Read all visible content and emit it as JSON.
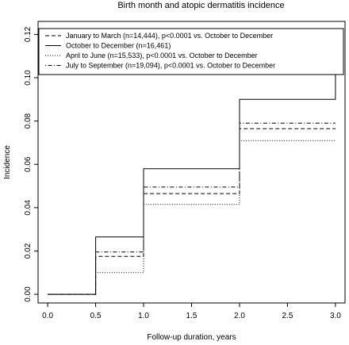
{
  "chart_data": {
    "type": "line",
    "title": "Birth month and atopic dermatitis incidence",
    "xlabel": "Follow-up duration, years",
    "ylabel": "Incidence",
    "xlim": [
      -0.1,
      3.1
    ],
    "ylim": [
      -0.004,
      0.126
    ],
    "x_ticks": [
      "0.0",
      "0.5",
      "1.0",
      "1.5",
      "2.0",
      "2.5",
      "3.0"
    ],
    "y_ticks": [
      "0.00",
      "0.02",
      "0.04",
      "0.06",
      "0.08",
      "0.10",
      "0.12"
    ],
    "grid": false,
    "legend_position": "top",
    "series": [
      {
        "name": "January to March (n=14,444), p<0.0001 vs. October to December",
        "line_style": "dashed",
        "x": [
          0.0,
          0.5,
          0.5,
          1.0,
          1.0,
          2.0,
          2.0,
          3.0
        ],
        "y": [
          0.0,
          0.0,
          0.0175,
          0.0175,
          0.0465,
          0.0465,
          0.0765,
          0.0765
        ]
      },
      {
        "name": "October to December (n=16,461)",
        "line_style": "solid",
        "x": [
          0.0,
          0.5,
          0.5,
          1.0,
          1.0,
          2.0,
          2.0,
          3.0,
          3.0
        ],
        "y": [
          0.0,
          0.0,
          0.0265,
          0.0265,
          0.058,
          0.058,
          0.09,
          0.09,
          0.118
        ]
      },
      {
        "name": "April to June (n=15,533), p<0.0001 vs. October to December",
        "line_style": "dotted",
        "x": [
          0.0,
          0.5,
          0.5,
          1.0,
          1.0,
          2.0,
          2.0,
          3.0
        ],
        "y": [
          0.0,
          0.0,
          0.01,
          0.01,
          0.0415,
          0.0415,
          0.071,
          0.071
        ]
      },
      {
        "name": "July to September (n=19,094), p<0.0001 vs. October to December",
        "line_style": "dotdash",
        "x": [
          0.0,
          0.5,
          0.5,
          1.0,
          1.0,
          2.0,
          2.0,
          3.0
        ],
        "y": [
          0.0,
          0.0,
          0.0195,
          0.0195,
          0.0495,
          0.0495,
          0.079,
          0.079
        ]
      }
    ]
  }
}
